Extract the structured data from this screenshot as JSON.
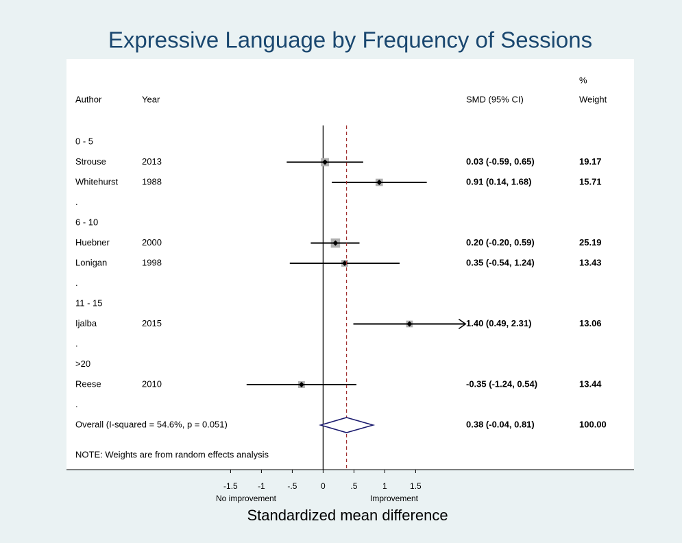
{
  "chart_data": {
    "type": "forest",
    "title": "Expressive Language by Frequency of Sessions",
    "columns": {
      "author": "Author",
      "year": "Year",
      "ci": "SMD (95% CI)",
      "weight_top": "%",
      "weight": "Weight"
    },
    "rows": [
      {
        "kind": "group",
        "label": "0 - 5"
      },
      {
        "kind": "study",
        "author": "Strouse",
        "year": 2013,
        "smd": 0.03,
        "lower": -0.59,
        "upper": 0.65,
        "ci_label": "0.03 (-0.59, 0.65)",
        "weight": 19.17
      },
      {
        "kind": "study",
        "author": "Whitehurst",
        "year": 1988,
        "smd": 0.91,
        "lower": 0.14,
        "upper": 1.68,
        "ci_label": "0.91 (0.14, 1.68)",
        "weight": 15.71
      },
      {
        "kind": "spacer",
        "label": "."
      },
      {
        "kind": "group",
        "label": "6 - 10"
      },
      {
        "kind": "study",
        "author": "Huebner",
        "year": 2000,
        "smd": 0.2,
        "lower": -0.2,
        "upper": 0.59,
        "ci_label": "0.20 (-0.20, 0.59)",
        "weight": 25.19
      },
      {
        "kind": "study",
        "author": "Lonigan",
        "year": 1998,
        "smd": 0.35,
        "lower": -0.54,
        "upper": 1.24,
        "ci_label": "0.35 (-0.54, 1.24)",
        "weight": 13.43
      },
      {
        "kind": "spacer",
        "label": "."
      },
      {
        "kind": "group",
        "label": "11 - 15"
      },
      {
        "kind": "study",
        "author": "Ijalba",
        "year": 2015,
        "smd": 1.4,
        "lower": 0.49,
        "upper": 2.31,
        "ci_label": "1.40 (0.49, 2.31)",
        "weight": 13.06,
        "arrow": true
      },
      {
        "kind": "spacer",
        "label": "."
      },
      {
        "kind": "group",
        "label": ">20"
      },
      {
        "kind": "study",
        "author": "Reese",
        "year": 2010,
        "smd": -0.35,
        "lower": -1.24,
        "upper": 0.54,
        "ci_label": "-0.35 (-1.24, 0.54)",
        "weight": 13.44
      },
      {
        "kind": "spacer",
        "label": "."
      },
      {
        "kind": "overall",
        "label": "Overall  (I-squared = 54.6%, p = 0.051)",
        "smd": 0.38,
        "lower": -0.04,
        "upper": 0.81,
        "ci_label": "0.38 (-0.04, 0.81)",
        "weight": 100,
        "weight_label": "100.00"
      }
    ],
    "note": "NOTE: Weights are from random effects analysis",
    "xlim": [
      -4.16,
      5.04
    ],
    "xticks": [
      -1.5,
      -1,
      {
        "value": -0.5,
        "label": "-.5"
      },
      0,
      {
        "value": 0.5,
        "label": ".5"
      },
      1,
      1.5
    ],
    "null_line": 0,
    "left_label": "No improvement",
    "right_label": "Improvement",
    "xlabel": "Standardized mean difference"
  }
}
